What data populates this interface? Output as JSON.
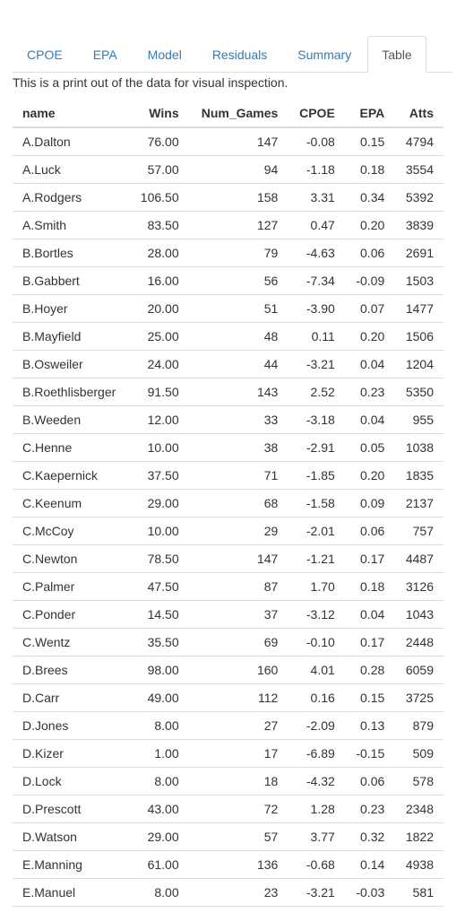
{
  "tabs": [
    {
      "label": "CPOE",
      "active": false
    },
    {
      "label": "EPA",
      "active": false
    },
    {
      "label": "Model",
      "active": false
    },
    {
      "label": "Residuals",
      "active": false
    },
    {
      "label": "Summary",
      "active": false
    },
    {
      "label": "Table",
      "active": true
    }
  ],
  "caption": "This is a print out of the data for visual inspection.",
  "table": {
    "columns": [
      "name",
      "Wins",
      "Num_Games",
      "CPOE",
      "EPA",
      "Atts"
    ],
    "rows": [
      [
        "A.Dalton",
        "76.00",
        "147",
        "-0.08",
        "0.15",
        "4794"
      ],
      [
        "A.Luck",
        "57.00",
        "94",
        "-1.18",
        "0.18",
        "3554"
      ],
      [
        "A.Rodgers",
        "106.50",
        "158",
        "3.31",
        "0.34",
        "5392"
      ],
      [
        "A.Smith",
        "83.50",
        "127",
        "0.47",
        "0.20",
        "3839"
      ],
      [
        "B.Bortles",
        "28.00",
        "79",
        "-4.63",
        "0.06",
        "2691"
      ],
      [
        "B.Gabbert",
        "16.00",
        "56",
        "-7.34",
        "-0.09",
        "1503"
      ],
      [
        "B.Hoyer",
        "20.00",
        "51",
        "-3.90",
        "0.07",
        "1477"
      ],
      [
        "B.Mayfield",
        "25.00",
        "48",
        "0.11",
        "0.20",
        "1506"
      ],
      [
        "B.Osweiler",
        "24.00",
        "44",
        "-3.21",
        "0.04",
        "1204"
      ],
      [
        "B.Roethlisberger",
        "91.50",
        "143",
        "2.52",
        "0.23",
        "5350"
      ],
      [
        "B.Weeden",
        "12.00",
        "33",
        "-3.18",
        "0.04",
        "955"
      ],
      [
        "C.Henne",
        "10.00",
        "38",
        "-2.91",
        "0.05",
        "1038"
      ],
      [
        "C.Kaepernick",
        "37.50",
        "71",
        "-1.85",
        "0.20",
        "1835"
      ],
      [
        "C.Keenum",
        "29.00",
        "68",
        "-1.58",
        "0.09",
        "2137"
      ],
      [
        "C.McCoy",
        "10.00",
        "29",
        "-2.01",
        "0.06",
        "757"
      ],
      [
        "C.Newton",
        "78.50",
        "147",
        "-1.21",
        "0.17",
        "4487"
      ],
      [
        "C.Palmer",
        "47.50",
        "87",
        "1.70",
        "0.18",
        "3126"
      ],
      [
        "C.Ponder",
        "14.50",
        "37",
        "-3.12",
        "0.04",
        "1043"
      ],
      [
        "C.Wentz",
        "35.50",
        "69",
        "-0.10",
        "0.17",
        "2448"
      ],
      [
        "D.Brees",
        "98.00",
        "160",
        "4.01",
        "0.28",
        "6059"
      ],
      [
        "D.Carr",
        "49.00",
        "112",
        "0.16",
        "0.15",
        "3725"
      ],
      [
        "D.Jones",
        "8.00",
        "27",
        "-2.09",
        "0.13",
        "879"
      ],
      [
        "D.Kizer",
        "1.00",
        "17",
        "-6.89",
        "-0.15",
        "509"
      ],
      [
        "D.Lock",
        "8.00",
        "18",
        "-4.32",
        "0.06",
        "578"
      ],
      [
        "D.Prescott",
        "43.00",
        "72",
        "1.28",
        "0.23",
        "2348"
      ],
      [
        "D.Watson",
        "29.00",
        "57",
        "3.77",
        "0.32",
        "1822"
      ],
      [
        "E.Manning",
        "61.00",
        "136",
        "-0.68",
        "0.14",
        "4938"
      ],
      [
        "E.Manuel",
        "8.00",
        "23",
        "-3.21",
        "-0.03",
        "581"
      ]
    ]
  }
}
